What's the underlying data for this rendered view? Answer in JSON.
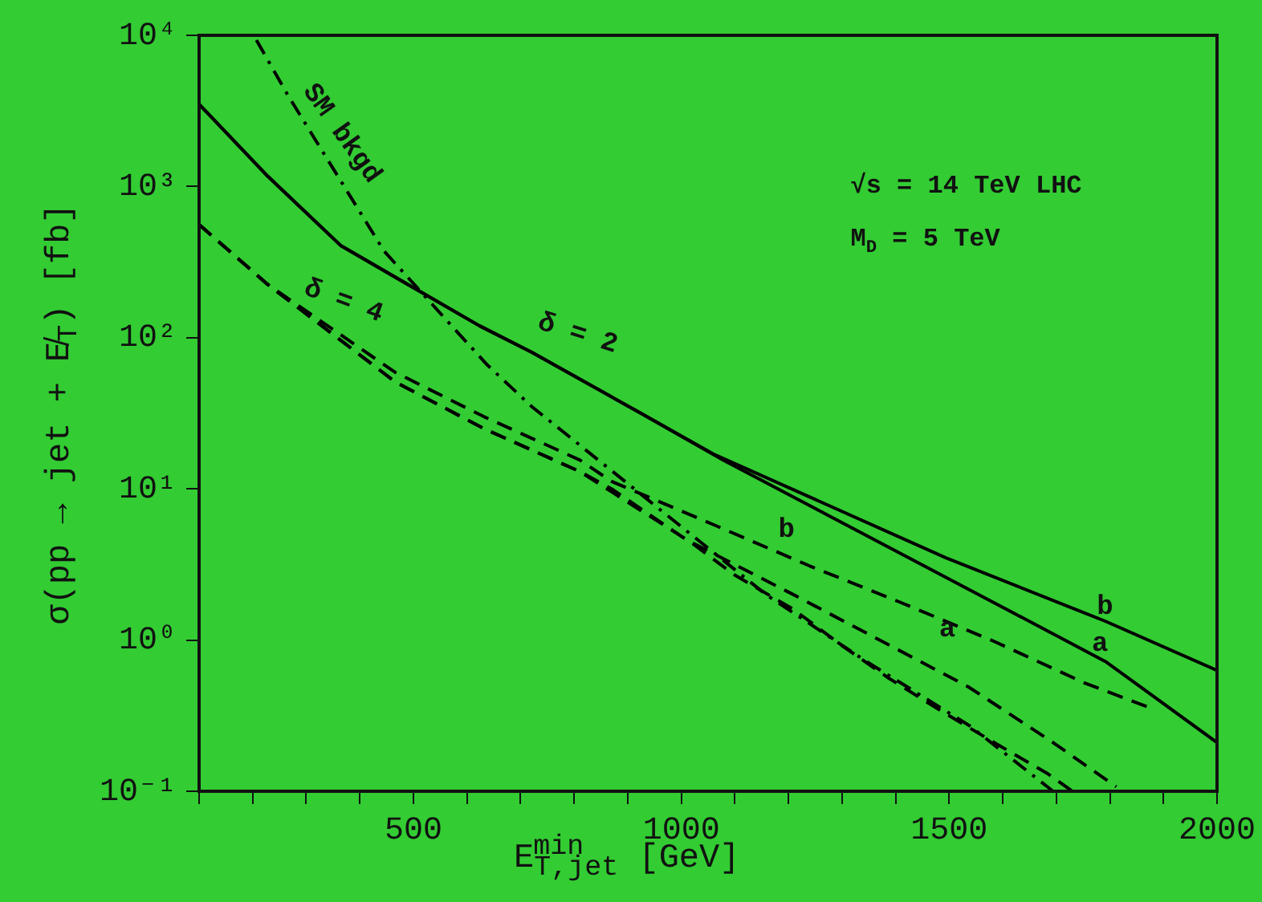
{
  "chart_data": {
    "type": "line",
    "xlabel": "E$_{T,jet}$$^{min}$ [GeV]",
    "ylabel": "σ(pp → jet + E̸$_{T}$) [fb]",
    "log": "y",
    "legend": false,
    "marker": "none",
    "xlim": [
      100,
      2000
    ],
    "xticks": [
      {
        "value": 100,
        "label": null
      },
      {
        "value": 200,
        "label": null
      },
      {
        "value": 300,
        "label": null
      },
      {
        "value": 400,
        "label": null
      },
      500,
      {
        "value": 600,
        "label": null
      },
      {
        "value": 700,
        "label": null
      },
      {
        "value": 800,
        "label": null
      },
      {
        "value": 900,
        "label": null
      },
      1000,
      {
        "value": 1100,
        "label": null
      },
      {
        "value": 1200,
        "label": null
      },
      {
        "value": 1300,
        "label": null
      },
      {
        "value": 1400,
        "label": null
      },
      1500,
      {
        "value": 1600,
        "label": null
      },
      {
        "value": 1700,
        "label": null
      },
      {
        "value": 1800,
        "label": null
      },
      {
        "value": 1900,
        "label": null
      },
      2000
    ],
    "ylim": [
      0.1,
      10000
    ],
    "yticks": [
      {
        "value": 0.1,
        "label": "10⁻¹"
      },
      {
        "value": 1,
        "label": "10⁰"
      },
      {
        "value": 10,
        "label": "10¹"
      },
      {
        "value": 100,
        "label": "10²"
      },
      {
        "value": 1000,
        "label": "10³"
      },
      {
        "value": 10000,
        "label": "10⁴"
      }
    ],
    "series": [
      {
        "color": "#000000",
        "line_style": "solid",
        "x": [
          100,
          228,
          365,
          504,
          623,
          721,
          922,
          1060,
          1494,
          1792,
          2000
        ],
        "values": [
          3500,
          1170,
          405,
          210,
          120,
          80,
          32,
          17,
          3.5,
          1.33,
          0.63
        ]
      },
      {
        "color": "#000000",
        "line_style": "solid",
        "x": [
          100,
          228,
          365,
          504,
          623,
          721,
          922,
          1078,
          1494,
          1792,
          2000
        ],
        "values": [
          3500,
          1170,
          405,
          210,
          120,
          80,
          32,
          15.5,
          2.6,
          0.72,
          0.21
        ]
      },
      {
        "color": "#000000",
        "line_style": "dashed",
        "x": [
          100,
          228,
          466,
          632,
          811,
          870,
          1060,
          1239,
          1405,
          1584,
          1753,
          1872
        ],
        "values": [
          560,
          225,
          59,
          30,
          15.5,
          11.2,
          5.8,
          3.1,
          1.8,
          0.98,
          0.52,
          0.36
        ]
      },
      {
        "color": "#000000",
        "line_style": "dashed",
        "x": [
          100,
          228,
          466,
          632,
          811,
          870,
          1010,
          1209,
          1375,
          1536,
          1694,
          1812
        ],
        "values": [
          560,
          225,
          51,
          25,
          13,
          10,
          4.6,
          2.0,
          0.98,
          0.49,
          0.21,
          0.107
        ]
      },
      {
        "color": "#000000",
        "line_style": "dashed",
        "x": [
          100,
          228,
          466,
          632,
          811,
          1019,
          1099,
          1209,
          1298,
          1387,
          1485,
          1584,
          1685,
          1730
        ],
        "values": [
          560,
          225,
          51,
          25,
          13,
          4.4,
          2.7,
          1.6,
          0.93,
          0.56,
          0.34,
          0.21,
          0.13,
          0.1
        ]
      },
      {
        "color": "#000000",
        "line_style": "dashdot",
        "x": [
          207,
          266,
          445,
          564,
          638,
          721,
          1158,
          1346,
          1539,
          1694
        ],
        "values": [
          9300,
          4000,
          375,
          128,
          66,
          35,
          2.0,
          0.72,
          0.27,
          0.1
        ]
      }
    ],
    "annotations": [
      {
        "text": "√s = 14 TeV LHC"
      },
      {
        "text": "M$_{D}$ = 5 TeV"
      },
      "SM bkgd",
      "δ = 4",
      "δ = 2",
      "b",
      "a",
      "b",
      "a"
    ]
  }
}
